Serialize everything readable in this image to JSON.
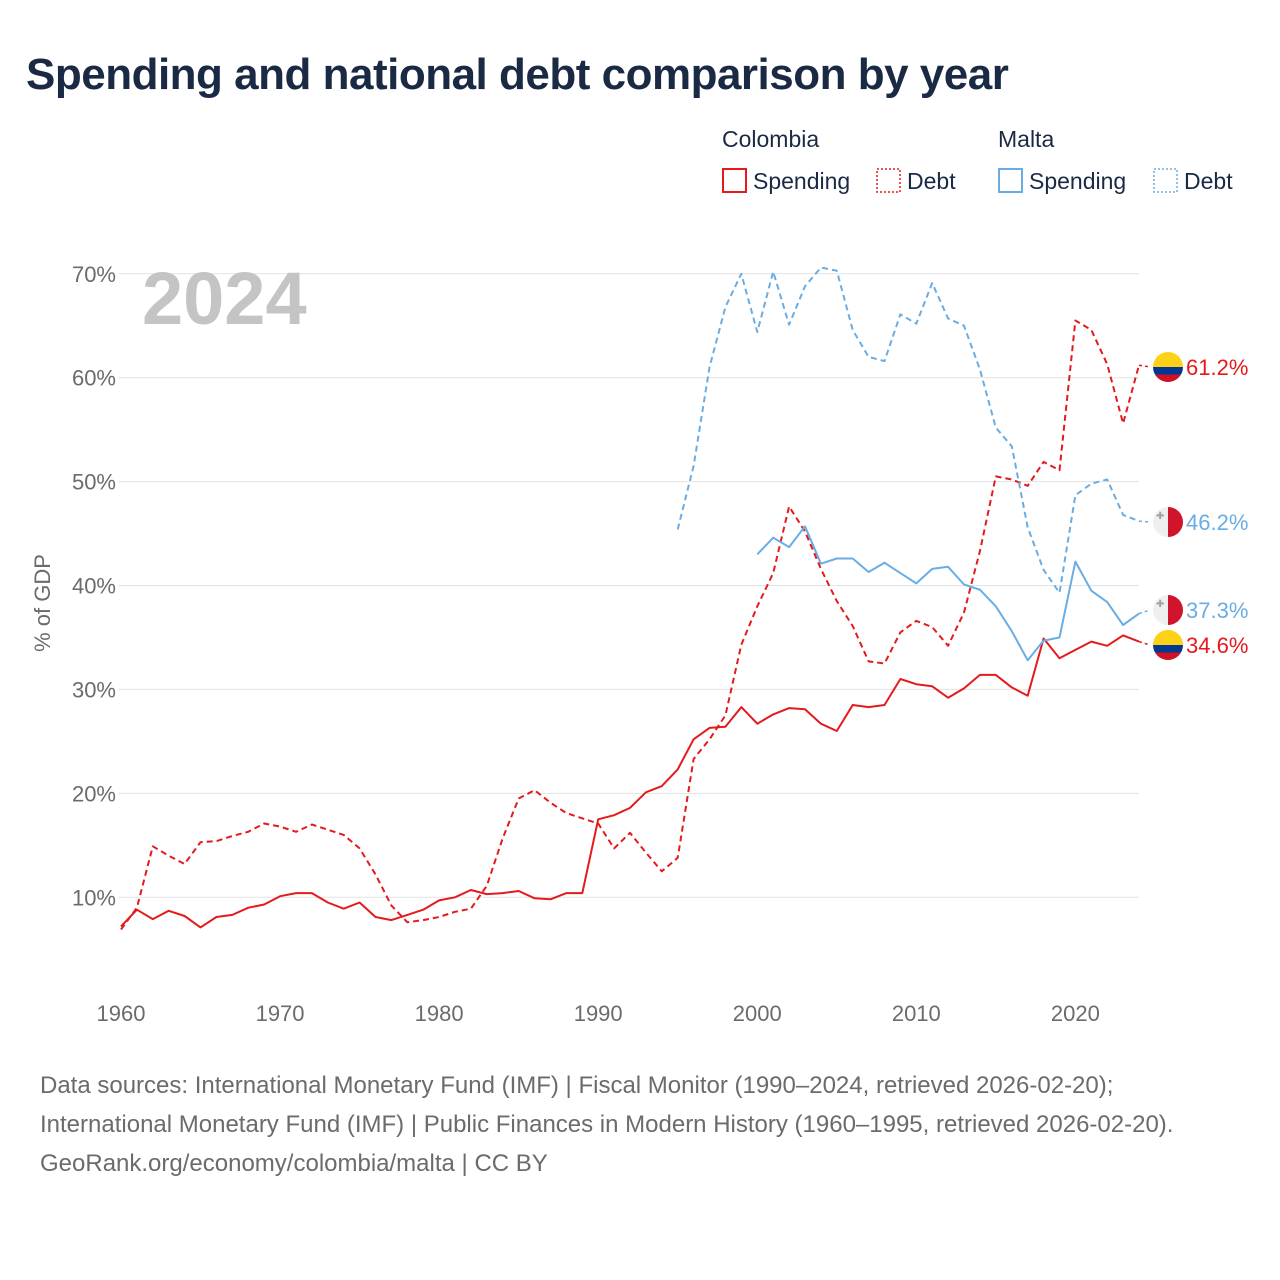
{
  "title": "Spending and national debt comparison by year",
  "chart_data": {
    "type": "line",
    "year_label": "2024",
    "ylabel": "% of GDP",
    "xlim": [
      1960,
      2024
    ],
    "ylim": [
      3,
      72
    ],
    "x_ticks": [
      1960,
      1970,
      1980,
      1990,
      2000,
      2010,
      2020
    ],
    "y_ticks": [
      10,
      20,
      30,
      40,
      50,
      60,
      70
    ],
    "y_tick_labels": [
      "10%",
      "20%",
      "30%",
      "40%",
      "50%",
      "60%",
      "70%"
    ],
    "legend": {
      "groups": [
        {
          "country": "Colombia",
          "spending_label": "Spending",
          "debt_label": "Debt",
          "color": "#e41a1c"
        },
        {
          "country": "Malta",
          "spending_label": "Spending",
          "debt_label": "Debt",
          "color": "#6aade4"
        }
      ]
    },
    "series": [
      {
        "name": "Colombia Debt",
        "country": "Colombia",
        "kind": "debt",
        "color": "#e41a1c",
        "dash": true,
        "flag": "colombia",
        "end_label": "61.2%",
        "start_year": 1960,
        "values": [
          6.9,
          9.0,
          14.9,
          14.0,
          13.2,
          15.3,
          15.4,
          15.9,
          16.3,
          17.1,
          16.8,
          16.3,
          17.0,
          16.5,
          16.0,
          14.7,
          12.2,
          9.2,
          7.6,
          7.8,
          8.1,
          8.6,
          8.9,
          11.1,
          15.7,
          19.5,
          20.3,
          19.1,
          18.1,
          17.6,
          17.1,
          14.7,
          16.2,
          14.3,
          12.5,
          13.8,
          23.3,
          25.2,
          27.5,
          34.3,
          38.0,
          41.2,
          47.6,
          45.2,
          41.6,
          38.5,
          36.1,
          32.7,
          32.5,
          35.5,
          36.6,
          36.0,
          34.2,
          37.4,
          43.3,
          50.5,
          50.2,
          49.6,
          51.9,
          51.1,
          65.5,
          64.6,
          61.3,
          55.6,
          61.2
        ]
      },
      {
        "name": "Colombia Spending",
        "country": "Colombia",
        "kind": "spending",
        "color": "#e41a1c",
        "dash": false,
        "flag": "colombia",
        "end_label": "34.6%",
        "start_year": 1960,
        "values": [
          7.2,
          8.8,
          7.9,
          8.7,
          8.2,
          7.1,
          8.1,
          8.3,
          9.0,
          9.3,
          10.1,
          10.4,
          10.4,
          9.5,
          8.9,
          9.5,
          8.1,
          7.8,
          8.3,
          8.8,
          9.7,
          10.0,
          10.7,
          10.3,
          10.4,
          10.6,
          9.9,
          9.8,
          10.4,
          10.4,
          17.5,
          17.9,
          18.6,
          20.1,
          20.7,
          22.3,
          25.2,
          26.3,
          26.4,
          28.3,
          26.7,
          27.6,
          28.2,
          28.1,
          26.7,
          26.0,
          28.5,
          28.3,
          28.5,
          31.0,
          30.5,
          30.3,
          29.2,
          30.1,
          31.4,
          31.4,
          30.2,
          29.4,
          34.9,
          33.0,
          33.8,
          34.6,
          34.2,
          35.2,
          34.6
        ]
      },
      {
        "name": "Malta Debt",
        "country": "Malta",
        "kind": "debt",
        "color": "#6aade4",
        "dash": true,
        "flag": "malta",
        "end_label": "46.2%",
        "start_year": 1995,
        "values": [
          45.4,
          51.5,
          61.0,
          66.8,
          70.0,
          64.4,
          70.2,
          65.1,
          68.8,
          70.6,
          70.3,
          64.6,
          62.0,
          61.6,
          66.1,
          65.2,
          69.1,
          65.7,
          65.0,
          60.8,
          55.2,
          53.4,
          45.6,
          41.5,
          39.3,
          48.7,
          49.8,
          50.2,
          46.8,
          46.2
        ]
      },
      {
        "name": "Malta Spending",
        "country": "Malta",
        "kind": "spending",
        "color": "#6aade4",
        "dash": false,
        "flag": "malta",
        "end_label": "37.3%",
        "start_year": 2000,
        "values": [
          43.0,
          44.6,
          43.7,
          45.7,
          42.1,
          42.6,
          42.6,
          41.3,
          42.2,
          41.2,
          40.2,
          41.6,
          41.8,
          40.1,
          39.6,
          38.0,
          35.6,
          32.8,
          34.7,
          35.0,
          42.3,
          39.5,
          38.4,
          36.2,
          37.3
        ]
      }
    ]
  },
  "footer": {
    "sources": "Data sources: International Monetary Fund (IMF) | Fiscal Monitor (1990–2024, retrieved 2026-02-20); International Monetary Fund (IMF) | Public Finances in Modern History (1960–1995, retrieved 2026-02-20).",
    "credit": "GeoRank.org/economy/colombia/malta | CC BY"
  }
}
